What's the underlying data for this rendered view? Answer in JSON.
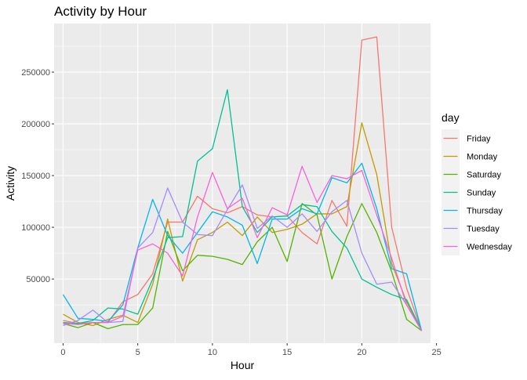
{
  "chart_data": {
    "type": "line",
    "title": "Activity by Hour",
    "xlabel": "Hour",
    "ylabel": "Activity",
    "xlim": [
      -0.6,
      24.6
    ],
    "ylim": [
      -12000,
      297000
    ],
    "xticks": [
      0,
      5,
      10,
      15,
      20,
      25
    ],
    "yticks": [
      50000,
      100000,
      150000,
      200000,
      250000
    ],
    "xtick_labels": [
      "0",
      "5",
      "10",
      "15",
      "20",
      "25"
    ],
    "ytick_labels": [
      "50000",
      "100000",
      "150000",
      "200000",
      "250000"
    ],
    "grid": true,
    "legend": {
      "title": "day",
      "placement": "right"
    },
    "x": [
      0,
      1,
      2,
      3,
      4,
      5,
      6,
      7,
      8,
      9,
      10,
      11,
      12,
      13,
      14,
      15,
      16,
      17,
      18,
      19,
      20,
      21,
      22,
      23,
      24
    ],
    "series": [
      {
        "name": "Friday",
        "color": "#F8766D",
        "values": [
          10000,
          7000,
          8000,
          8000,
          28000,
          35000,
          55000,
          105000,
          105000,
          130000,
          118000,
          114000,
          120000,
          112000,
          110000,
          111000,
          95000,
          84000,
          126000,
          101000,
          281000,
          284000,
          100000,
          41000,
          0
        ]
      },
      {
        "name": "Monday",
        "color": "#C49A00",
        "values": [
          16000,
          8000,
          5000,
          11000,
          15000,
          8000,
          45000,
          108000,
          48000,
          88000,
          95000,
          105000,
          92000,
          110000,
          95000,
          98000,
          103000,
          113000,
          113000,
          120000,
          201000,
          151000,
          65000,
          28000,
          0
        ]
      },
      {
        "name": "Saturday",
        "color": "#53B400",
        "values": [
          7000,
          3000,
          8000,
          2000,
          6000,
          6000,
          22000,
          96000,
          58000,
          73000,
          72000,
          69000,
          64000,
          86000,
          100000,
          67000,
          123000,
          112000,
          50000,
          91000,
          123000,
          95000,
          57000,
          11000,
          0
        ]
      },
      {
        "name": "Sunday",
        "color": "#00C094",
        "values": [
          8000,
          7000,
          10000,
          22000,
          21000,
          16000,
          50000,
          90000,
          91000,
          164000,
          176000,
          233000,
          120000,
          95000,
          110000,
          111000,
          122000,
          120000,
          96000,
          80000,
          50000,
          42000,
          35000,
          30000,
          0
        ]
      },
      {
        "name": "Thursday",
        "color": "#00B6EB",
        "values": [
          35000,
          12000,
          11000,
          9000,
          25000,
          80000,
          127000,
          92000,
          75000,
          95000,
          115000,
          110000,
          102000,
          65000,
          108000,
          108000,
          118000,
          113000,
          148000,
          143000,
          162000,
          118000,
          60000,
          55000,
          0
        ]
      },
      {
        "name": "Tuesday",
        "color": "#A58AFF",
        "values": [
          5000,
          10000,
          20000,
          8000,
          9000,
          80000,
          95000,
          138000,
          105000,
          93000,
          92000,
          117000,
          141000,
          99000,
          111000,
          100000,
          113000,
          96000,
          115000,
          126000,
          75000,
          45000,
          47000,
          25000,
          0
        ]
      },
      {
        "name": "Wednesday",
        "color": "#FB61D7",
        "values": [
          7000,
          6000,
          8000,
          8000,
          14000,
          78000,
          84000,
          75000,
          53000,
          110000,
          153000,
          118000,
          128000,
          90000,
          119000,
          112000,
          159000,
          124000,
          150000,
          147000,
          155000,
          112000,
          70000,
          25000,
          0
        ]
      }
    ]
  }
}
